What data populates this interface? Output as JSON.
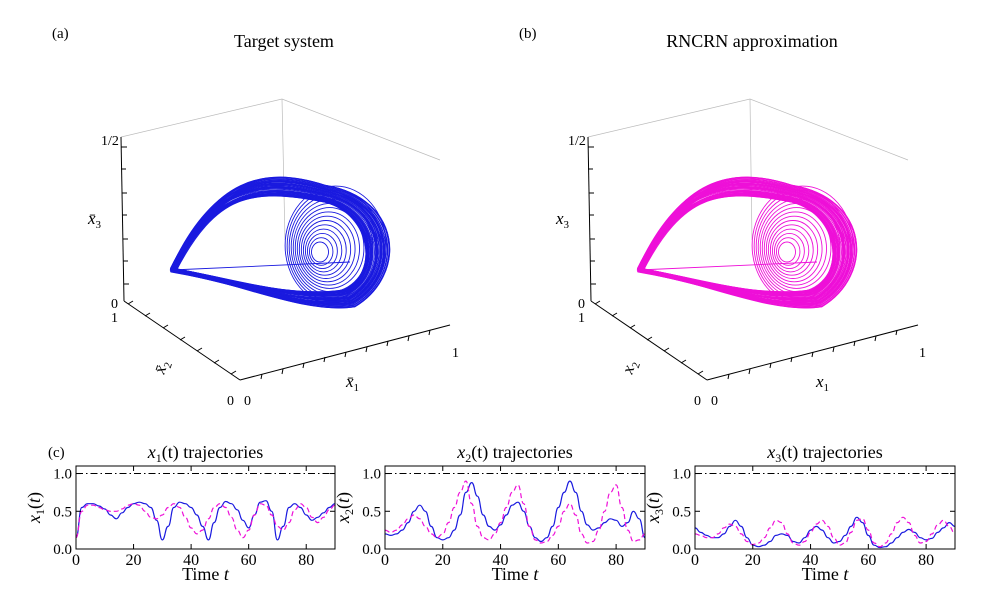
{
  "panels": {
    "a": {
      "label": "(a)",
      "title": "Target system",
      "color": "#1a1adf",
      "axes": {
        "x1": {
          "label": "x̄",
          "sub": "1",
          "ticks": [
            "0",
            "1"
          ]
        },
        "x2": {
          "label": "x̄",
          "sub": "2",
          "ticks": [
            "0",
            "1"
          ]
        },
        "x3": {
          "label": "x̄",
          "sub": "3",
          "ticks": [
            "0",
            "1/2"
          ]
        }
      }
    },
    "b": {
      "label": "(b)",
      "title": "RNCRN approximation",
      "color": "#ee10d8",
      "axes": {
        "x1": {
          "label": "x",
          "sub": "1",
          "ticks": [
            "0",
            "1"
          ]
        },
        "x2": {
          "label": "x",
          "sub": "2",
          "ticks": [
            "0",
            "1"
          ]
        },
        "x3": {
          "label": "x",
          "sub": "3",
          "ticks": [
            "0",
            "1/2"
          ]
        }
      }
    },
    "c": {
      "label": "(c)"
    }
  },
  "chart_data": [
    {
      "type": "line",
      "panel": "c1",
      "title": "x1(t) trajectories",
      "title_parts": {
        "var": "x",
        "sub": "1",
        "rest": "(t) trajectories"
      },
      "xlabel": "Time t",
      "ylabel": "x1(t)",
      "xlim": [
        0,
        90
      ],
      "ylim": [
        0,
        1.1
      ],
      "xticks": [
        0,
        20,
        40,
        60,
        80
      ],
      "yticks": [
        "0.0",
        "0.5",
        "1.0"
      ],
      "reference_line": 1.0,
      "series": [
        {
          "style": "solid",
          "color": "#1a1adf",
          "x": [
            0,
            2,
            4,
            6,
            8,
            10,
            12,
            14,
            16,
            18,
            20,
            22,
            24,
            26,
            28,
            30,
            32,
            34,
            36,
            38,
            40,
            42,
            44,
            46,
            48,
            50,
            52,
            54,
            56,
            58,
            60,
            62,
            64,
            66,
            68,
            70,
            72,
            74,
            76,
            78,
            80,
            82,
            84,
            86,
            88,
            90
          ],
          "y": [
            0.15,
            0.55,
            0.6,
            0.6,
            0.57,
            0.53,
            0.45,
            0.4,
            0.48,
            0.55,
            0.6,
            0.62,
            0.6,
            0.55,
            0.38,
            0.12,
            0.3,
            0.55,
            0.62,
            0.6,
            0.55,
            0.45,
            0.3,
            0.12,
            0.35,
            0.55,
            0.63,
            0.6,
            0.52,
            0.38,
            0.28,
            0.45,
            0.62,
            0.64,
            0.5,
            0.12,
            0.3,
            0.55,
            0.6,
            0.55,
            0.45,
            0.38,
            0.42,
            0.48,
            0.55,
            0.6
          ]
        },
        {
          "style": "dashed",
          "color": "#ee10d8",
          "x": [
            0,
            2,
            4,
            6,
            8,
            10,
            12,
            14,
            16,
            18,
            20,
            22,
            24,
            26,
            28,
            30,
            32,
            34,
            36,
            38,
            40,
            42,
            44,
            46,
            48,
            50,
            52,
            54,
            56,
            58,
            60,
            62,
            64,
            66,
            68,
            70,
            72,
            74,
            76,
            78,
            80,
            82,
            84,
            86,
            88,
            90
          ],
          "y": [
            0.15,
            0.5,
            0.58,
            0.58,
            0.55,
            0.52,
            0.5,
            0.5,
            0.53,
            0.58,
            0.6,
            0.58,
            0.5,
            0.42,
            0.4,
            0.45,
            0.55,
            0.6,
            0.55,
            0.42,
            0.28,
            0.2,
            0.25,
            0.4,
            0.55,
            0.6,
            0.55,
            0.42,
            0.25,
            0.15,
            0.25,
            0.45,
            0.6,
            0.58,
            0.45,
            0.3,
            0.25,
            0.35,
            0.52,
            0.6,
            0.55,
            0.42,
            0.35,
            0.42,
            0.52,
            0.58
          ]
        }
      ]
    },
    {
      "type": "line",
      "panel": "c2",
      "title": "x2(t) trajectories",
      "title_parts": {
        "var": "x",
        "sub": "2",
        "rest": "(t) trajectories"
      },
      "xlabel": "Time t",
      "ylabel": "x2(t)",
      "xlim": [
        0,
        90
      ],
      "ylim": [
        0,
        1.1
      ],
      "xticks": [
        0,
        20,
        40,
        60,
        80
      ],
      "yticks": [
        "0.0",
        "0.5",
        "1.0"
      ],
      "reference_line": 1.0,
      "series": [
        {
          "style": "solid",
          "color": "#1a1adf",
          "x": [
            0,
            2,
            4,
            6,
            8,
            10,
            12,
            14,
            16,
            18,
            20,
            22,
            24,
            26,
            28,
            30,
            32,
            34,
            36,
            38,
            40,
            42,
            44,
            46,
            48,
            50,
            52,
            54,
            56,
            58,
            60,
            62,
            64,
            66,
            68,
            70,
            72,
            74,
            76,
            78,
            80,
            82,
            84,
            86,
            88,
            90
          ],
          "y": [
            0.2,
            0.18,
            0.2,
            0.25,
            0.35,
            0.5,
            0.58,
            0.5,
            0.3,
            0.15,
            0.12,
            0.15,
            0.25,
            0.45,
            0.75,
            0.88,
            0.7,
            0.45,
            0.3,
            0.25,
            0.32,
            0.45,
            0.58,
            0.62,
            0.5,
            0.3,
            0.15,
            0.1,
            0.15,
            0.3,
            0.55,
            0.75,
            0.9,
            0.75,
            0.5,
            0.32,
            0.25,
            0.28,
            0.35,
            0.4,
            0.38,
            0.3,
            0.35,
            0.5,
            0.4,
            0.15
          ]
        },
        {
          "style": "dashed",
          "color": "#ee10d8",
          "x": [
            0,
            2,
            4,
            6,
            8,
            10,
            12,
            14,
            16,
            18,
            20,
            22,
            24,
            26,
            28,
            30,
            32,
            34,
            36,
            38,
            40,
            42,
            44,
            46,
            48,
            50,
            52,
            54,
            56,
            58,
            60,
            62,
            64,
            66,
            68,
            70,
            72,
            74,
            76,
            78,
            80,
            82,
            84,
            86,
            88,
            90
          ],
          "y": [
            0.25,
            0.22,
            0.25,
            0.32,
            0.4,
            0.45,
            0.4,
            0.3,
            0.2,
            0.15,
            0.2,
            0.35,
            0.55,
            0.75,
            0.9,
            0.6,
            0.3,
            0.15,
            0.12,
            0.2,
            0.35,
            0.55,
            0.75,
            0.85,
            0.6,
            0.3,
            0.12,
            0.08,
            0.1,
            0.18,
            0.3,
            0.5,
            0.6,
            0.45,
            0.2,
            0.08,
            0.1,
            0.25,
            0.5,
            0.75,
            0.85,
            0.55,
            0.25,
            0.1,
            0.12,
            0.2
          ]
        }
      ]
    },
    {
      "type": "line",
      "panel": "c3",
      "title": "x3(t) trajectories",
      "title_parts": {
        "var": "x",
        "sub": "3",
        "rest": "(t) trajectories"
      },
      "xlabel": "Time t",
      "ylabel": "x3(t)",
      "xlim": [
        0,
        90
      ],
      "ylim": [
        0,
        1.1
      ],
      "xticks": [
        0,
        20,
        40,
        60,
        80
      ],
      "yticks": [
        "0.0",
        "0.5",
        "1.0"
      ],
      "reference_line": 1.0,
      "series": [
        {
          "style": "solid",
          "color": "#1a1adf",
          "x": [
            0,
            2,
            4,
            6,
            8,
            10,
            12,
            14,
            16,
            18,
            20,
            22,
            24,
            26,
            28,
            30,
            32,
            34,
            36,
            38,
            40,
            42,
            44,
            46,
            48,
            50,
            52,
            54,
            56,
            58,
            60,
            62,
            64,
            66,
            68,
            70,
            72,
            74,
            76,
            78,
            80,
            82,
            84,
            86,
            88,
            90
          ],
          "y": [
            0.28,
            0.22,
            0.18,
            0.15,
            0.15,
            0.2,
            0.3,
            0.38,
            0.3,
            0.15,
            0.05,
            0.03,
            0.05,
            0.1,
            0.18,
            0.2,
            0.18,
            0.1,
            0.08,
            0.15,
            0.25,
            0.3,
            0.25,
            0.15,
            0.08,
            0.1,
            0.18,
            0.3,
            0.42,
            0.35,
            0.18,
            0.05,
            0.02,
            0.03,
            0.08,
            0.15,
            0.22,
            0.26,
            0.22,
            0.15,
            0.12,
            0.14,
            0.22,
            0.28,
            0.35,
            0.3
          ]
        },
        {
          "style": "dashed",
          "color": "#ee10d8",
          "x": [
            0,
            2,
            4,
            6,
            8,
            10,
            12,
            14,
            16,
            18,
            20,
            22,
            24,
            26,
            28,
            30,
            32,
            34,
            36,
            38,
            40,
            42,
            44,
            46,
            48,
            50,
            52,
            54,
            56,
            58,
            60,
            62,
            64,
            66,
            68,
            70,
            72,
            74,
            76,
            78,
            80,
            82,
            84,
            86,
            88,
            90
          ],
          "y": [
            0.2,
            0.18,
            0.15,
            0.15,
            0.2,
            0.28,
            0.33,
            0.3,
            0.2,
            0.1,
            0.06,
            0.08,
            0.15,
            0.28,
            0.38,
            0.35,
            0.2,
            0.08,
            0.05,
            0.1,
            0.22,
            0.33,
            0.38,
            0.3,
            0.15,
            0.05,
            0.08,
            0.22,
            0.38,
            0.4,
            0.25,
            0.08,
            0.03,
            0.08,
            0.2,
            0.35,
            0.42,
            0.35,
            0.18,
            0.08,
            0.1,
            0.2,
            0.32,
            0.38,
            0.3,
            0.2
          ]
        }
      ]
    }
  ]
}
